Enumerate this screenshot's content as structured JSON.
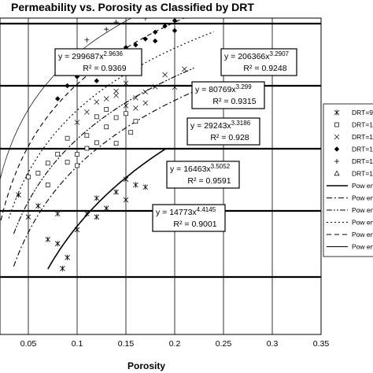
{
  "chart_data": {
    "type": "scatter",
    "title": "Permeability vs. Porosity as Classified by DRT",
    "xlabel": "Porosity",
    "ylabel": "",
    "xlim": [
      0,
      0.35
    ],
    "x_ticks": [
      "0.05",
      "0.1",
      "0.15",
      "0.2",
      "0.25",
      "0.3",
      "0.35"
    ],
    "y_scale": "log",
    "grid": true,
    "legend_position": "right",
    "series": [
      {
        "name": "DRT=9",
        "marker": "asterisk",
        "points": [
          [
            0.07,
            0.35
          ],
          [
            0.08,
            0.3
          ],
          [
            0.085,
            0.12
          ],
          [
            0.09,
            0.18
          ],
          [
            0.05,
            0.8
          ],
          [
            0.06,
            1.2
          ],
          [
            0.1,
            0.5
          ],
          [
            0.11,
            0.9
          ],
          [
            0.12,
            1.6
          ],
          [
            0.13,
            1.1
          ],
          [
            0.14,
            2.0
          ],
          [
            0.15,
            1.5
          ],
          [
            0.16,
            2.6
          ],
          [
            0.17,
            2.4
          ],
          [
            0.12,
            0.8
          ],
          [
            0.15,
            3.2
          ],
          [
            0.08,
            0.9
          ],
          [
            0.04,
            1.8
          ]
        ]
      },
      {
        "name": "DRT=1",
        "marker": "square",
        "points": [
          [
            0.05,
            3.5
          ],
          [
            0.06,
            4.0
          ],
          [
            0.07,
            5.8
          ],
          [
            0.08,
            8.1
          ],
          [
            0.09,
            14.5
          ],
          [
            0.1,
            5.3
          ],
          [
            0.11,
            16.0
          ],
          [
            0.12,
            12.3
          ],
          [
            0.13,
            22.0
          ],
          [
            0.14,
            31.0
          ],
          [
            0.15,
            36.0
          ],
          [
            0.155,
            18.0
          ],
          [
            0.16,
            27.0
          ],
          [
            0.13,
            42.0
          ],
          [
            0.12,
            32.0
          ],
          [
            0.11,
            10.0
          ],
          [
            0.1,
            8.0
          ],
          [
            0.09,
            6.0
          ],
          [
            0.14,
            12.0
          ],
          [
            0.07,
            2.6
          ]
        ]
      },
      {
        "name": "DRT=1",
        "marker": "x",
        "points": [
          [
            0.1,
            26.0
          ],
          [
            0.11,
            38.0
          ],
          [
            0.12,
            55.0
          ],
          [
            0.13,
            62.0
          ],
          [
            0.14,
            70.0
          ],
          [
            0.15,
            48.0
          ],
          [
            0.16,
            44.0
          ],
          [
            0.17,
            80.0
          ],
          [
            0.18,
            96.0
          ],
          [
            0.19,
            150.0
          ],
          [
            0.2,
            95.0
          ],
          [
            0.21,
            185.0
          ],
          [
            0.15,
            110.0
          ],
          [
            0.14,
            82.0
          ],
          [
            0.16,
            64.0
          ],
          [
            0.17,
            53.0
          ]
        ]
      },
      {
        "name": "DRT=1",
        "marker": "diamond",
        "points": [
          [
            0.08,
            62.0
          ],
          [
            0.09,
            100.0
          ],
          [
            0.1,
            140.0
          ],
          [
            0.11,
            160.0
          ],
          [
            0.12,
            190.0
          ],
          [
            0.13,
            270.0
          ],
          [
            0.14,
            360.0
          ],
          [
            0.15,
            410.0
          ],
          [
            0.16,
            450.0
          ],
          [
            0.17,
            560.0
          ],
          [
            0.18,
            720.0
          ],
          [
            0.19,
            900.0
          ],
          [
            0.2,
            1100.0
          ],
          [
            0.21,
            1300.0
          ],
          [
            0.22,
            1700.0
          ],
          [
            0.2,
            760.0
          ],
          [
            0.18,
            520.0
          ],
          [
            0.16,
            330.0
          ],
          [
            0.14,
            210.0
          ],
          [
            0.12,
            120.0
          ]
        ]
      },
      {
        "name": "DRT=1",
        "marker": "plus",
        "points": [
          [
            0.09,
            330.0
          ],
          [
            0.11,
            540.0
          ],
          [
            0.13,
            800.0
          ],
          [
            0.14,
            1040.0
          ],
          [
            0.15,
            1450.0
          ],
          [
            0.16,
            1650.0
          ],
          [
            0.17,
            2050.0
          ],
          [
            0.18,
            2300.0
          ],
          [
            0.19,
            2900.0
          ],
          [
            0.2,
            3100.0
          ],
          [
            0.21,
            3800.0
          ],
          [
            0.22,
            4200.0
          ],
          [
            0.23,
            3600.0
          ],
          [
            0.17,
            1200.0
          ],
          [
            0.2,
            2000.0
          ]
        ]
      },
      {
        "name": "DRT=1",
        "marker": "triangle",
        "points": [
          [
            0.16,
            4500.0
          ],
          [
            0.17,
            3200.0
          ],
          [
            0.18,
            6800.0
          ],
          [
            0.19,
            11000.0
          ],
          [
            0.2,
            9800.0
          ],
          [
            0.21,
            14000.0
          ],
          [
            0.22,
            17500.0
          ],
          [
            0.23,
            10200.0
          ],
          [
            0.24,
            12500.0
          ],
          [
            0.25,
            19000.0
          ],
          [
            0.21,
            7200.0
          ],
          [
            0.2,
            5800.0
          ],
          [
            0.23,
            16500.0
          ],
          [
            0.22,
            13000.0
          ]
        ]
      }
    ],
    "trendlines": [
      {
        "name": "Pow",
        "coef": 14773,
        "exp": 4.4145,
        "r2": "0.9001",
        "style": "solid",
        "x_range": [
          0.07,
          0.19
        ]
      },
      {
        "name": "Pow",
        "coef": 16463,
        "exp": 3.5052,
        "r2": "0.9591",
        "style": "dashdot",
        "x_range": [
          0.035,
          0.22
        ]
      },
      {
        "name": "Pow",
        "coef": 29243,
        "exp": 3.3186,
        "r2": "0.928",
        "style": "dashdotdot",
        "x_range": [
          0.035,
          0.22
        ]
      },
      {
        "name": "Pow",
        "coef": 80769,
        "exp": 3.299,
        "r2": "0.9315",
        "style": "dotted",
        "x_range": [
          0.03,
          0.24
        ]
      },
      {
        "name": "Pow",
        "coef": 206366,
        "exp": 3.2907,
        "r2": "0.9248",
        "style": "dashed",
        "x_range": [
          0.01,
          0.24
        ]
      },
      {
        "name": "Pow",
        "coef": 299687,
        "exp": 2.9636,
        "r2": "0.9369",
        "style": "thin",
        "x_range": [
          0.01,
          0.24
        ]
      }
    ],
    "equation_labels": [
      {
        "eq": "y = 299687x",
        "sup": "2.9636",
        "r2": "R² = 0.9369"
      },
      {
        "eq": "y = 206366x",
        "sup": "3.2907",
        "r2": "R² = 0.9248"
      },
      {
        "eq": "y = 80769x",
        "sup": "3.299",
        "r2": "R² = 0.9315"
      },
      {
        "eq": "y = 29243x",
        "sup": "3.3186",
        "r2": "R² = 0.928"
      },
      {
        "eq": "y = 16463x",
        "sup": "3.5052",
        "r2": "R² = 0.9591"
      },
      {
        "eq": "y = 14773x",
        "sup": "4.4145",
        "r2": "R² = 0.9001"
      }
    ],
    "legend_entries": [
      "DRT=9",
      "DRT=1",
      "DRT=1",
      "DRT=1",
      "DRT=1",
      "DRT=1",
      "Pow en",
      "Pow en",
      "Pow en",
      "Pow en",
      "Pow en",
      "Pow en"
    ]
  }
}
